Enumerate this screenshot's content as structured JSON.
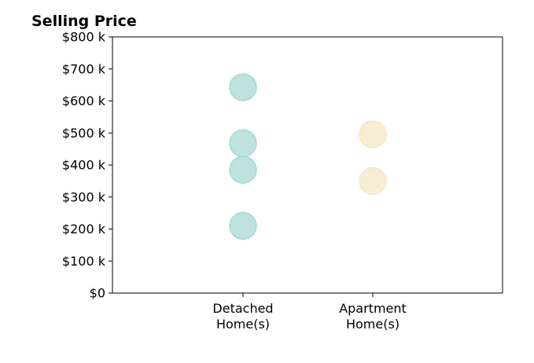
{
  "chart_data": {
    "type": "scatter",
    "title": "Selling Price",
    "xlabel": "",
    "ylabel": "",
    "categories": [
      "Detached\nHome(s)",
      "Apartment\nHome(s)"
    ],
    "y_tick_labels": [
      "$0",
      "$100 k",
      "$200 k",
      "$300 k",
      "$400 k",
      "$500 k",
      "$600 k",
      "$700 k",
      "$800 k"
    ],
    "ylim": [
      0,
      800000
    ],
    "grid": false,
    "series": [
      {
        "category_index": 0,
        "values": [
          643000,
          468000,
          385000,
          210000
        ],
        "color": "#a8d8d4"
      },
      {
        "category_index": 1,
        "values": [
          496000,
          350000
        ],
        "color": "#f5e6c4"
      }
    ]
  }
}
